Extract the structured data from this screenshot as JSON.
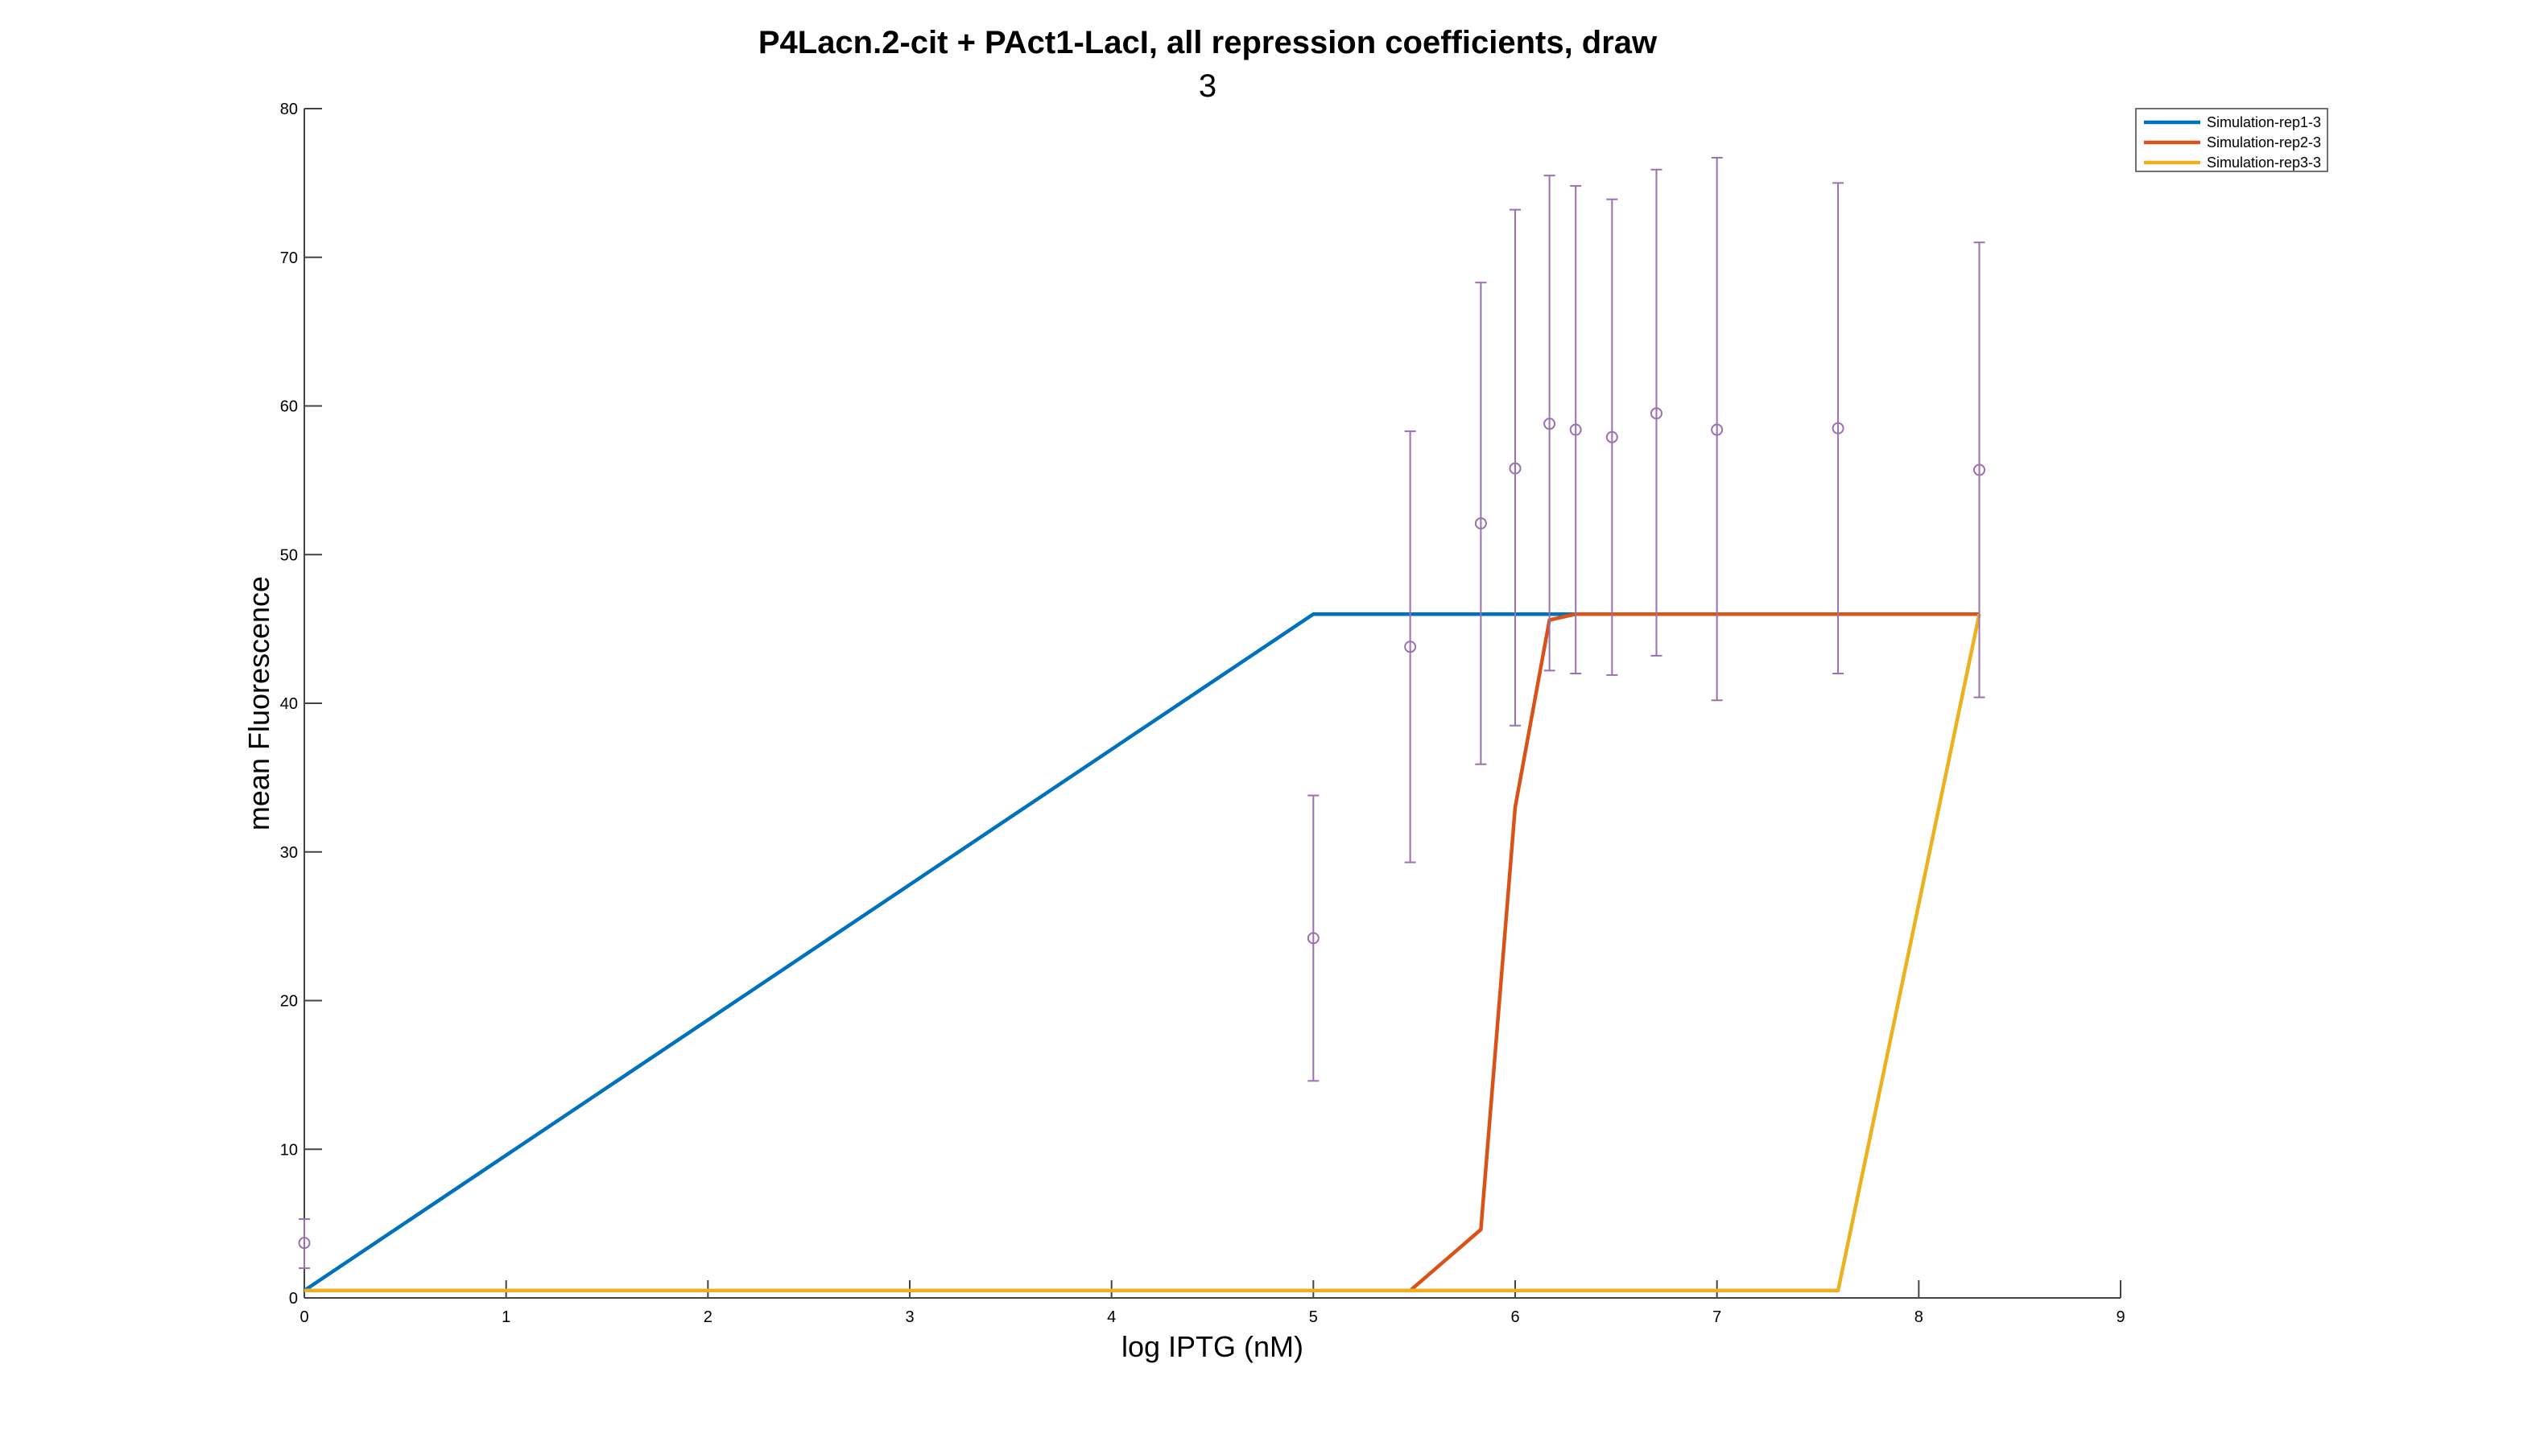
{
  "chart_data": {
    "type": "line",
    "title_line1": "P4Lacn.2-cit + PAct1-LacI, all repression coefficients, draw",
    "title_line2": "3",
    "xlabel": "log IPTG (nM)",
    "ylabel": "mean Fluorescence",
    "xlim": [
      0,
      9
    ],
    "ylim": [
      0,
      80
    ],
    "xticks": [
      0,
      1,
      2,
      3,
      4,
      5,
      6,
      7,
      8,
      9
    ],
    "yticks": [
      0,
      10,
      20,
      30,
      40,
      50,
      60,
      70,
      80
    ],
    "grid": false,
    "legend_position": "top-right",
    "series": [
      {
        "name": "Simulation-rep1-3",
        "color": "#0072BD",
        "points": [
          [
            0,
            0.5
          ],
          [
            5.0,
            46.0
          ],
          [
            6.3,
            46.0
          ],
          [
            8.3,
            46.0
          ]
        ]
      },
      {
        "name": "Simulation-rep2-3",
        "color": "#D95319",
        "points": [
          [
            5.48,
            0.5
          ],
          [
            5.83,
            4.6
          ],
          [
            6.0,
            33.0
          ],
          [
            6.17,
            45.6
          ],
          [
            6.3,
            46.0
          ],
          [
            8.3,
            46.0
          ]
        ]
      },
      {
        "name": "Simulation-rep3-3",
        "color": "#EDB120",
        "points": [
          [
            0,
            0.5
          ],
          [
            7.6,
            0.5
          ],
          [
            8.3,
            46.0
          ]
        ]
      }
    ],
    "errorbars": {
      "color": "#9B6FB0",
      "points": [
        {
          "x": 0.0,
          "y": 3.7,
          "lo": 2.0,
          "hi": 5.3
        },
        {
          "x": 5.0,
          "y": 24.2,
          "lo": 14.6,
          "hi": 33.8
        },
        {
          "x": 5.48,
          "y": 43.8,
          "lo": 29.3,
          "hi": 58.3
        },
        {
          "x": 5.83,
          "y": 52.1,
          "lo": 35.9,
          "hi": 68.3
        },
        {
          "x": 6.0,
          "y": 55.8,
          "lo": 38.5,
          "hi": 73.2
        },
        {
          "x": 6.17,
          "y": 58.8,
          "lo": 42.2,
          "hi": 75.5
        },
        {
          "x": 6.3,
          "y": 58.4,
          "lo": 42.0,
          "hi": 74.8
        },
        {
          "x": 6.48,
          "y": 57.9,
          "lo": 41.9,
          "hi": 73.9
        },
        {
          "x": 6.7,
          "y": 59.5,
          "lo": 43.2,
          "hi": 75.9
        },
        {
          "x": 7.0,
          "y": 58.4,
          "lo": 40.2,
          "hi": 76.7
        },
        {
          "x": 7.6,
          "y": 58.5,
          "lo": 42.0,
          "hi": 75.0
        },
        {
          "x": 8.3,
          "y": 55.7,
          "lo": 40.4,
          "hi": 71.0
        }
      ]
    }
  }
}
